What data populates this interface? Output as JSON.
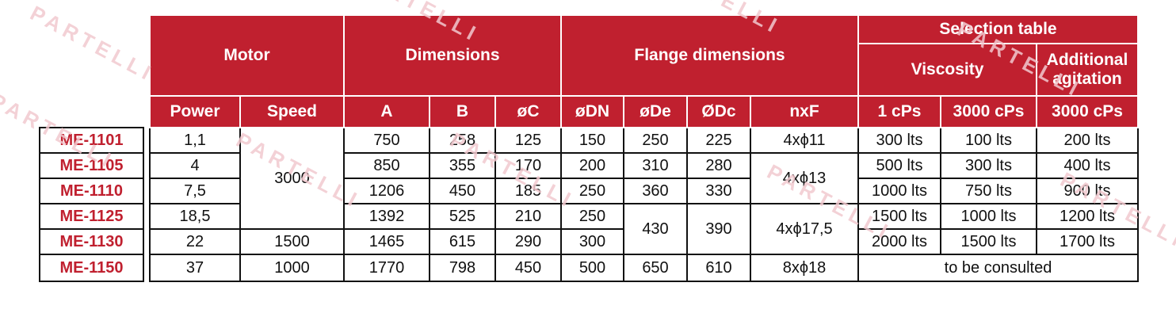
{
  "watermark": "PARTELLI",
  "headers": {
    "group": {
      "motor": "Motor",
      "dimensions": "Dimensions",
      "flange": "Flange dimensions",
      "selection": "Selection table",
      "viscosity": "Viscosity",
      "additional": "Additional agitation"
    },
    "cols": {
      "power": "Power",
      "speed": "Speed",
      "a": "A",
      "b": "B",
      "c": "øC",
      "dn": "øDN",
      "de": "øDe",
      "dc": "ØDc",
      "nxf": "nxF",
      "v1": "1 cPs",
      "v3000": "3000 cPs",
      "add3000": "3000 cPs"
    }
  },
  "rows": [
    {
      "model": "ME-1101",
      "power": "1,1",
      "speed": "3000",
      "a": "750",
      "b": "258",
      "c": "125",
      "dn": "150",
      "de": "250",
      "dc": "225",
      "nxf": "4xϕ11",
      "v1": "300 lts",
      "v3000": "100 lts",
      "add": "200 lts"
    },
    {
      "model": "ME-1105",
      "power": "4",
      "a": "850",
      "b": "355",
      "c": "170",
      "dn": "200",
      "de": "310",
      "dc": "280",
      "nxf": "4xϕ13",
      "v1": "500 lts",
      "v3000": "300 lts",
      "add": "400 lts"
    },
    {
      "model": "ME-1110",
      "power": "7,5",
      "a": "1206",
      "b": "450",
      "c": "185",
      "dn": "250",
      "de": "360",
      "dc": "330",
      "v1": "1000 lts",
      "v3000": "750 lts",
      "add": "900 lts"
    },
    {
      "model": "ME-1125",
      "power": "18,5",
      "a": "1392",
      "b": "525",
      "c": "210",
      "dn": "250",
      "de": "430",
      "dc": "390",
      "nxf": "4xϕ17,5",
      "v1": "1500 lts",
      "v3000": "1000 lts",
      "add": "1200 lts"
    },
    {
      "model": "ME-1130",
      "power": "22",
      "speed": "1500",
      "a": "1465",
      "b": "615",
      "c": "290",
      "dn": "300",
      "v1": "2000 lts",
      "v3000": "1500 lts",
      "add": "1700 lts"
    },
    {
      "model": "ME-1150",
      "power": "37",
      "speed": "1000",
      "a": "1770",
      "b": "798",
      "c": "450",
      "dn": "500",
      "de": "650",
      "dc": "610",
      "nxf": "8xϕ18",
      "consult": "to be consulted"
    }
  ]
}
